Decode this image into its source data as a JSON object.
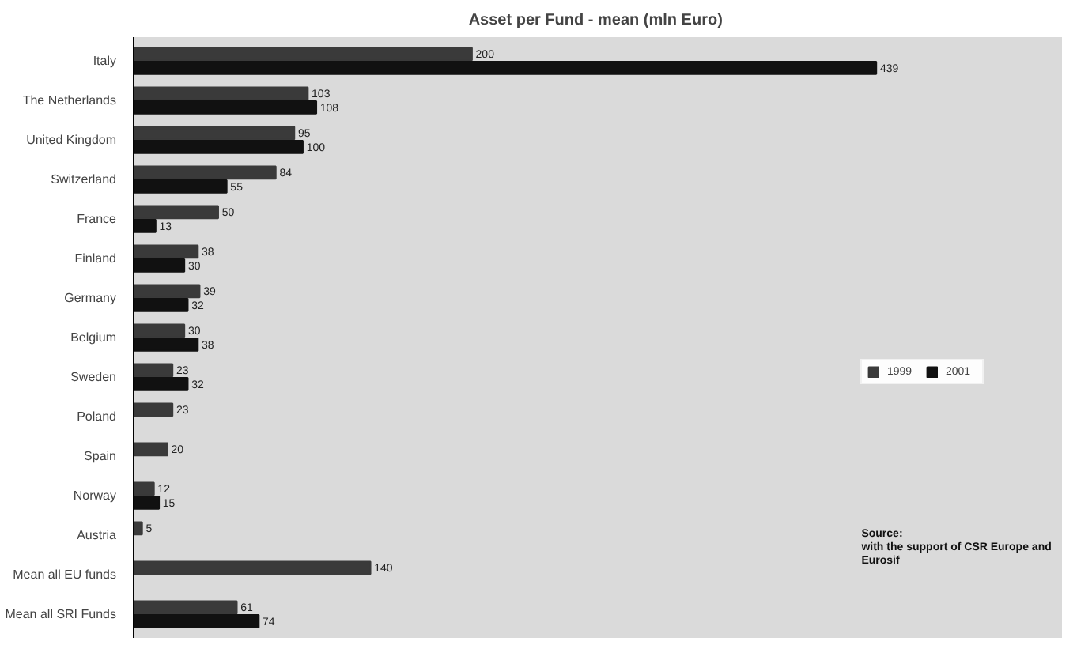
{
  "chart_data": {
    "type": "bar",
    "orientation": "horizontal",
    "title": "Asset per Fund - mean  (mln Euro)",
    "categories": [
      "Italy",
      "The Netherlands",
      "United Kingdom",
      "Switzerland",
      "France",
      "Finland",
      "Germany",
      "Belgium",
      "Sweden",
      "Poland",
      "Spain",
      "Norway",
      "Austria",
      "Mean all EU funds",
      "Mean all SRI Funds"
    ],
    "series": [
      {
        "name": "1999",
        "color": "#3a3a3a",
        "values": [
          200,
          103,
          95,
          84,
          50,
          38,
          39,
          30,
          23,
          23,
          20,
          12,
          5,
          140,
          61
        ]
      },
      {
        "name": "2001",
        "color": "#111111",
        "values": [
          439,
          108,
          100,
          55,
          13,
          30,
          32,
          38,
          32,
          null,
          null,
          15,
          null,
          null,
          74
        ]
      }
    ],
    "data_labels": true,
    "legend": "right",
    "annotations": [
      "Source:\nwith the support of CSR Europe and\nEurosif"
    ]
  }
}
